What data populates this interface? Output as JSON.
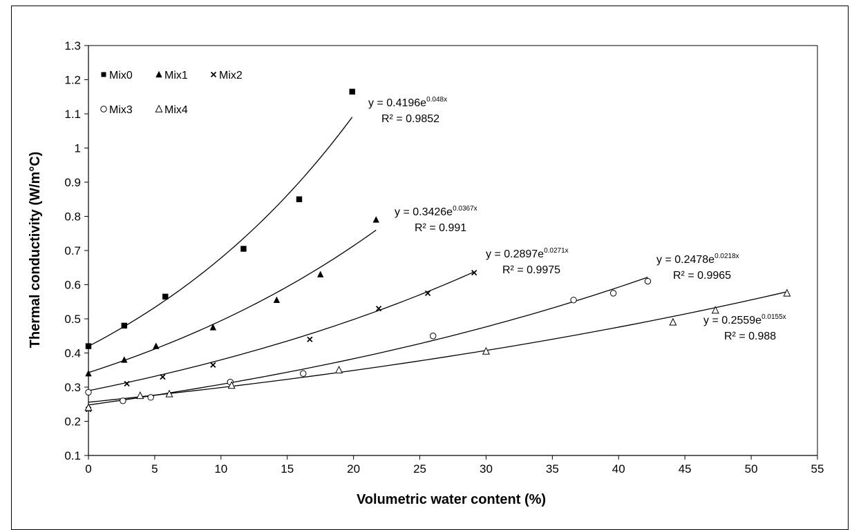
{
  "chart_data": {
    "type": "scatter",
    "title": "",
    "xlabel": "Volumetric water content (%)",
    "ylabel": "Thermal conductivity (W/m°C)",
    "xlim": [
      0,
      55
    ],
    "ylim": [
      0.1,
      1.3
    ],
    "x_ticks": [
      "0",
      "5",
      "10",
      "15",
      "20",
      "25",
      "30",
      "35",
      "40",
      "45",
      "50",
      "55"
    ],
    "y_ticks": [
      "0.1",
      "0.2",
      "0.3",
      "0.4",
      "0.5",
      "0.6",
      "0.7",
      "0.8",
      "0.9",
      "1",
      "1.1",
      "1.2",
      "1.3"
    ],
    "grid": false,
    "legend_position": "top-left",
    "series": [
      {
        "name": "Mix0",
        "marker": "filled-square",
        "points": [
          [
            0,
            0.42
          ],
          [
            2.7,
            0.48
          ],
          [
            5.8,
            0.565
          ],
          [
            11.7,
            0.705
          ],
          [
            15.9,
            0.85
          ],
          [
            19.9,
            1.165
          ]
        ],
        "fit": {
          "a": 0.4196,
          "b": 0.048,
          "x_range": [
            0,
            19.9
          ],
          "equation_prefix": "y = 0.4196e",
          "equation_exponent": "0.048x",
          "r2_text": "R² = 0.9852"
        }
      },
      {
        "name": "Mix1",
        "marker": "filled-triangle",
        "points": [
          [
            0,
            0.34
          ],
          [
            2.7,
            0.38
          ],
          [
            5.1,
            0.42
          ],
          [
            9.4,
            0.475
          ],
          [
            14.2,
            0.555
          ],
          [
            17.5,
            0.63
          ],
          [
            21.7,
            0.79
          ]
        ],
        "fit": {
          "a": 0.3426,
          "b": 0.0367,
          "x_range": [
            0,
            21.7
          ],
          "equation_prefix": "y = 0.3426e",
          "equation_exponent": "0.0367x",
          "r2_text": "R² = 0.991"
        }
      },
      {
        "name": "Mix2",
        "marker": "cross",
        "points": [
          [
            0,
            0.235
          ],
          [
            2.9,
            0.31
          ],
          [
            5.6,
            0.33
          ],
          [
            9.4,
            0.365
          ],
          [
            16.7,
            0.44
          ],
          [
            21.9,
            0.53
          ],
          [
            25.6,
            0.575
          ],
          [
            29.1,
            0.635
          ]
        ],
        "fit": {
          "a": 0.2897,
          "b": 0.0271,
          "x_range": [
            0,
            29.1
          ],
          "equation_prefix": "y = 0.2897e",
          "equation_exponent": "0.0271x",
          "r2_text": "R² = 0.9975"
        }
      },
      {
        "name": "Mix3",
        "marker": "open-circle",
        "points": [
          [
            0,
            0.285
          ],
          [
            2.6,
            0.26
          ],
          [
            4.7,
            0.27
          ],
          [
            10.7,
            0.315
          ],
          [
            16.2,
            0.34
          ],
          [
            26.0,
            0.45
          ],
          [
            36.6,
            0.555
          ],
          [
            39.6,
            0.575
          ],
          [
            42.2,
            0.61
          ]
        ],
        "fit": {
          "a": 0.2478,
          "b": 0.0218,
          "x_range": [
            0,
            42.2
          ],
          "equation_prefix": "y = 0.2478e",
          "equation_exponent": "0.0218x",
          "r2_text": "R² = 0.9965"
        }
      },
      {
        "name": "Mix4",
        "marker": "open-triangle",
        "points": [
          [
            0,
            0.24
          ],
          [
            3.9,
            0.275
          ],
          [
            6.1,
            0.28
          ],
          [
            10.8,
            0.305
          ],
          [
            18.9,
            0.35
          ],
          [
            30.0,
            0.405
          ],
          [
            44.1,
            0.49
          ],
          [
            47.3,
            0.525
          ],
          [
            52.7,
            0.575
          ]
        ],
        "fit": {
          "a": 0.2559,
          "b": 0.0155,
          "x_range": [
            0,
            52.7
          ],
          "equation_prefix": "y = 0.2559e",
          "equation_exponent": "0.0155x",
          "r2_text": "R² = 0.988"
        }
      }
    ]
  }
}
